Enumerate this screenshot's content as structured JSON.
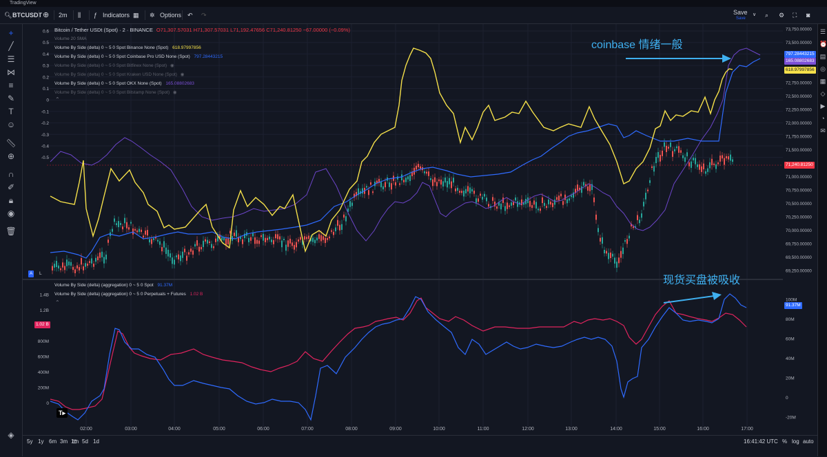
{
  "window": {
    "title": "TradingView"
  },
  "toolbar": {
    "symbol": "BTCUSDT",
    "interval": "2m",
    "indicators_label": "Indicators",
    "options_label": "Options",
    "save_label": "Save",
    "save_sub": "Save"
  },
  "main_legend": {
    "symbol_line": "Bitcoin / Tether USDt (Spot) · 2 · BINANCE",
    "ohlc": "O71,307.57031  H71,307.57031  L71,192.47656  C71,240.81250  −67.00000 (−0.09%)",
    "volume_sma": "Volume 20 SMA",
    "rows": [
      {
        "label": "Volume By Side (delta) 0 ~ 5 0 Spot Binance None (Spot)",
        "value": "618.97997856",
        "color": "#f5e04a",
        "dim": false
      },
      {
        "label": "Volume By Side (delta) 0 ~ 5 0 Spot Coinbase Pro USD None (Spot)",
        "value": "797.28443215",
        "color": "#2f6bff",
        "dim": false
      },
      {
        "label": "Volume By Side (delta) 0 ~ 5 0 Spot Bitfinex None (Spot)",
        "value": "",
        "color": "#787b86",
        "dim": true
      },
      {
        "label": "Volume By Side (delta) 0 ~ 5 0 Spot Kraken USD None (Spot)",
        "value": "",
        "color": "#787b86",
        "dim": true
      },
      {
        "label": "Volume By Side (delta) 0 ~ 5 0 Spot OKX None (Spot)",
        "value": "165.08802683",
        "color": "#7b4fd6",
        "dim": false
      },
      {
        "label": "Volume By Side (delta) 0 ~ 5 0 Spot Bitstamp None (Spot)",
        "value": "",
        "color": "#787b86",
        "dim": true
      }
    ]
  },
  "lower_legend": {
    "rows": [
      {
        "label": "Volume By Side (delta) (aggregation) 0 ~ 5 0 Spot",
        "value": "91.37M",
        "color": "#2f6bff"
      },
      {
        "label": "Volume By Side (delta) (aggregation) 0 ~ 5 0 Perpetuals + Futures",
        "value": "1.02 B",
        "color": "#e0245e"
      }
    ]
  },
  "left_axis_top": [
    "0.6",
    "0.5",
    "0.4",
    "0.3",
    "0.2",
    "0.1",
    "0",
    "-0.1",
    "-0.2",
    "-0.3",
    "-0.4",
    "-0.5"
  ],
  "price_axis": [
    "73,750.00000",
    "73,500.00000",
    "73,250.00000",
    "73,000.00000",
    "72,750.00000",
    "72,500.00000",
    "72,250.00000",
    "72,000.00000",
    "71,750.00000",
    "71,500.00000",
    "71,250.00000",
    "71,000.00000",
    "70,750.00000",
    "70,500.00000",
    "70,250.00000",
    "70,000.00000",
    "69,750.00000",
    "69,500.00000",
    "69,250.00000"
  ],
  "price_tags": {
    "coinbase": "797.28443215",
    "okx": "165.08802683",
    "binance": "618.97997856",
    "last": "71,240.81250"
  },
  "left_axis_bottom": [
    "1.4B",
    "1.2B",
    "1B",
    "800M",
    "600M",
    "400M",
    "200M",
    "0"
  ],
  "left_tag_bottom": "1.02 B",
  "right_axis_bottom": [
    "100M",
    "80M",
    "60M",
    "40M",
    "20M",
    "0",
    "-20M"
  ],
  "right_tag_bottom": "91.37M",
  "time_axis": [
    "02:00",
    "03:00",
    "04:00",
    "05:00",
    "06:00",
    "07:00",
    "08:00",
    "09:00",
    "10:00",
    "11:00",
    "12:00",
    "13:00",
    "14:00",
    "15:00",
    "16:00",
    "17:00"
  ],
  "bottom": {
    "ranges": [
      "5y",
      "1y",
      "6m",
      "3m",
      "1m",
      "5d",
      "1d"
    ],
    "clock": "16:41:42 UTC",
    "pct": "%",
    "log": "log",
    "auto": "auto"
  },
  "annotations": {
    "top": "coinbase 情绪一般",
    "bottom": "现货买盘被吸收"
  },
  "markers": {
    "a": "A",
    "l": "L"
  },
  "colors": {
    "bg": "#131722",
    "binance": "#f5e04a",
    "coinbase": "#2f6bff",
    "okx": "#7b4fd6",
    "perps": "#e0245e",
    "annotation": "#3fb0f0"
  }
}
